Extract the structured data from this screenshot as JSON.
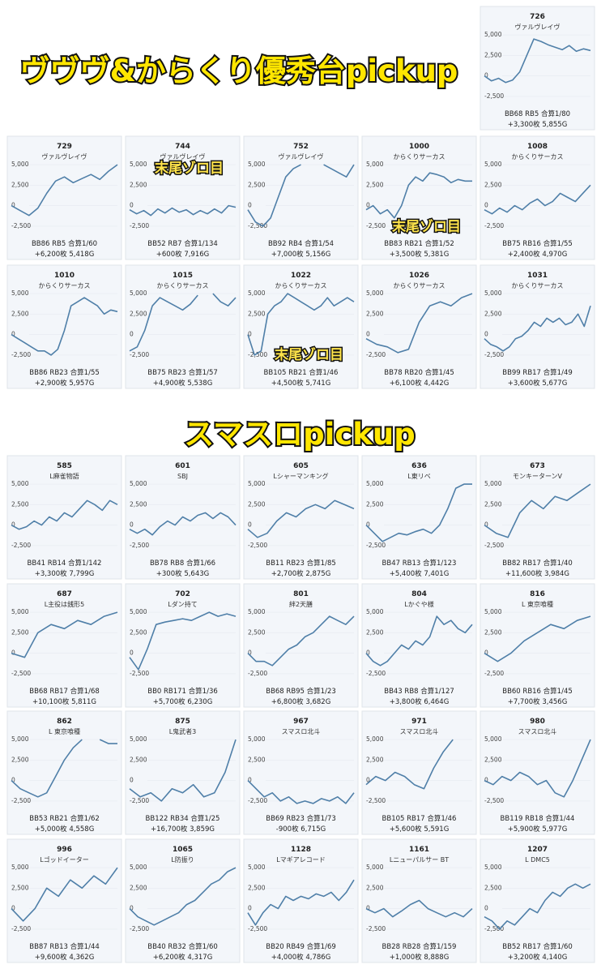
{
  "chart_axis": {
    "type": "line",
    "ylim": [
      -3500,
      5500
    ],
    "yticks": [
      {
        "value": 5000,
        "label": "5,000"
      },
      {
        "value": 2500,
        "label": "2,500"
      },
      0,
      {
        "value": -2500,
        "label": "-2,500"
      }
    ],
    "color": "#4f7fa8"
  },
  "sections": [
    {
      "title": "ヴヴヴ&からくり優秀台pickup",
      "cards": [
        {
          "number": "726",
          "name": "ヴァルヴレイヴ",
          "stats": [
            "BB68 RB5 合算1/80",
            "+3,300枚 5,855G"
          ],
          "values": [
            0,
            -600,
            -300,
            -800,
            -500,
            500,
            2500,
            4500,
            4200,
            3800,
            3500,
            3200,
            3700,
            3000,
            3300,
            3100
          ]
        },
        {
          "number": "729",
          "name": "ヴァルヴレイヴ",
          "stats": [
            "BB86 RB5 合算1/60",
            "+6,200枚 5,418G"
          ],
          "values": [
            0,
            -600,
            -1200,
            -300,
            1500,
            3000,
            3500,
            2800,
            3300,
            3800,
            3200,
            4200,
            5000
          ]
        },
        {
          "number": "744",
          "name": "ヴァルヴレイヴ",
          "annotation": "末尾ゾロ目",
          "stats": [
            "BB52 RB7 合算1/134",
            "+600枚 7,916G"
          ],
          "values": [
            -500,
            -1000,
            -600,
            -1200,
            -400,
            -900,
            -300,
            -800,
            -500,
            -1100,
            -600,
            -1000,
            -400,
            -900,
            0,
            -200
          ]
        },
        {
          "number": "752",
          "name": "ヴァルヴレイヴ",
          "stats": [
            "BB92 RB4 合算1/54",
            "+7,000枚 5,156G"
          ],
          "values": [
            -500,
            -2000,
            -2500,
            -1500,
            1000,
            3500,
            4500,
            5000,
            null,
            null,
            5000,
            4500,
            4000,
            3500,
            5000
          ]
        },
        {
          "number": "1000",
          "name": "からくりサーカス",
          "annotation": "末尾ゾロ目",
          "stats": [
            "BB83 RB21 合算1/52",
            "+3,500枚 5,381G"
          ],
          "values": [
            -500,
            0,
            -1000,
            -500,
            -1500,
            0,
            2500,
            3500,
            3000,
            4000,
            3800,
            3500,
            2800,
            3200,
            3000,
            3000
          ]
        },
        {
          "number": "1008",
          "name": "からくりサーカス",
          "stats": [
            "BB75 RB16 合算1/55",
            "+2,400枚 4,970G"
          ],
          "values": [
            -500,
            -1000,
            -300,
            -800,
            0,
            -500,
            300,
            800,
            0,
            500,
            1500,
            1000,
            500,
            1500,
            2500
          ]
        },
        {
          "number": "1010",
          "name": "からくりサーカス",
          "stats": [
            "BB86 RB23 合算1/55",
            "+2,900枚 5,957G"
          ],
          "values": [
            0,
            -500,
            -1000,
            -1500,
            -2000,
            -2000,
            -2500,
            -1800,
            500,
            3500,
            4000,
            4500,
            4000,
            3500,
            2500,
            3000,
            2800
          ]
        },
        {
          "number": "1015",
          "name": "からくりサーカス",
          "stats": [
            "BB75 RB23 合算1/57",
            "+4,900枚 5,538G"
          ],
          "values": [
            -2000,
            -1500,
            500,
            3500,
            4500,
            4000,
            3500,
            3000,
            3700,
            4800,
            null,
            5000,
            4000,
            3500,
            4500
          ]
        },
        {
          "number": "1022",
          "name": "からくりサーカス",
          "annotation": "末尾ゾロ目",
          "stats": [
            "BB105 RB21 合算1/46",
            "+4,500枚 5,741G"
          ],
          "values": [
            0,
            -2500,
            -2000,
            2500,
            3500,
            4000,
            5000,
            4500,
            4000,
            3500,
            3000,
            3500,
            4500,
            3500,
            4000,
            4500,
            4000
          ]
        },
        {
          "number": "1026",
          "name": "からくりサーカス",
          "stats": [
            "BB78 RB20 合算1/45",
            "+6,100枚 4,442G"
          ],
          "values": [
            -500,
            -1200,
            -1500,
            -2200,
            -1800,
            1500,
            3500,
            4000,
            3500,
            4500,
            5000
          ]
        },
        {
          "number": "1031",
          "name": "からくりサーカス",
          "stats": [
            "BB99 RB17 合算1/49",
            "+3,600枚 5,677G"
          ],
          "values": [
            -500,
            -1200,
            -1500,
            -2000,
            -1500,
            -500,
            -200,
            500,
            1500,
            1000,
            2000,
            1500,
            2000,
            1200,
            1500,
            2500,
            1000,
            3500
          ]
        }
      ]
    },
    {
      "title": "スマスロpickup",
      "cards": [
        {
          "number": "585",
          "name": "L麻雀物語",
          "stats": [
            "BB41 RB14 合算1/142",
            "+3,300枚 7,799G"
          ],
          "values": [
            0,
            -500,
            -200,
            500,
            0,
            1000,
            500,
            1500,
            1000,
            2000,
            3000,
            2500,
            1800,
            3000,
            2500
          ]
        },
        {
          "number": "601",
          "name": "SBJ",
          "stats": [
            "BB78 RB8 合算1/66",
            "+300枚 5,643G"
          ],
          "values": [
            -500,
            -1000,
            -500,
            -1200,
            -200,
            500,
            0,
            1000,
            500,
            1200,
            1500,
            800,
            1500,
            1000,
            0
          ]
        },
        {
          "number": "605",
          "name": "Lシャーマンキング",
          "stats": [
            "BB11 RB23 合算1/85",
            "+2,700枚 2,875G"
          ],
          "values": [
            -500,
            -1500,
            -1000,
            500,
            1500,
            1000,
            2000,
            2500,
            2000,
            3000,
            2500,
            2000
          ]
        },
        {
          "number": "636",
          "name": "L東リベ",
          "stats": [
            "BB47 RB13 合算1/123",
            "+5,400枚 7,401G"
          ],
          "values": [
            0,
            -1000,
            -2000,
            -1500,
            -1000,
            -1200,
            -800,
            -500,
            -1000,
            0,
            2000,
            4500,
            5000,
            5000
          ]
        },
        {
          "number": "673",
          "name": "モンキーターンV",
          "stats": [
            "BB82 RB17 合算1/40",
            "+11,600枚 3,984G"
          ],
          "values": [
            0,
            -1000,
            -1500,
            1500,
            3000,
            2000,
            3500,
            3000,
            4000,
            5000
          ]
        },
        {
          "number": "687",
          "name": "L主役は銭形5",
          "stats": [
            "BB68 RB17 合算1/68",
            "+10,100枚 5,811G"
          ],
          "values": [
            0,
            -500,
            2500,
            3500,
            3000,
            4000,
            3500,
            4500,
            5000
          ]
        },
        {
          "number": "702",
          "name": "Lダン持て",
          "stats": [
            "BB0 RB171 合算1/36",
            "+5,700枚 6,230G"
          ],
          "values": [
            -500,
            -2000,
            500,
            3500,
            3800,
            4000,
            4200,
            4000,
            4500,
            5000,
            4500,
            4800,
            4500
          ]
        },
        {
          "number": "801",
          "name": "絆2天膳",
          "stats": [
            "BB68 RB95 合算1/23",
            "+6,800枚 3,682G"
          ],
          "values": [
            0,
            -1000,
            -1000,
            -1500,
            -500,
            500,
            1000,
            2000,
            2500,
            3500,
            4500,
            4000,
            3500,
            4500
          ]
        },
        {
          "number": "804",
          "name": "Lかぐや様",
          "stats": [
            "BB43 RB8 合算1/127",
            "+3,800枚 6,464G"
          ],
          "values": [
            0,
            -1000,
            -1500,
            -1000,
            0,
            1000,
            500,
            1500,
            1000,
            2000,
            4500,
            3500,
            4000,
            3000,
            2500,
            3500
          ]
        },
        {
          "number": "816",
          "name": "L 東京喰種",
          "stats": [
            "BB60 RB16 合算1/45",
            "+7,700枚 3,456G"
          ],
          "values": [
            0,
            -1000,
            0,
            1500,
            2500,
            3500,
            3000,
            4000,
            4500
          ]
        },
        {
          "number": "862",
          "name": "L 東京喰種",
          "stats": [
            "BB53 RB21 合算1/62",
            "+5,000枚 4,558G"
          ],
          "values": [
            0,
            -1000,
            -1500,
            -2000,
            -1500,
            500,
            2500,
            4000,
            5000,
            null,
            5000,
            4500,
            4500
          ]
        },
        {
          "number": "875",
          "name": "L鬼武者3",
          "stats": [
            "BB122 RB34 合算1/25",
            "+16,700枚 3,859G"
          ],
          "values": [
            -1000,
            -2000,
            -1500,
            -2500,
            -1000,
            -1500,
            -500,
            -2000,
            -1500,
            1000,
            5000
          ]
        },
        {
          "number": "967",
          "name": "スマスロ北斗",
          "stats": [
            "BB69 RB23 合算1/73",
            "-900枚 6,715G"
          ],
          "values": [
            0,
            -1000,
            -2000,
            -1500,
            -2500,
            -2000,
            -2800,
            -2500,
            -2800,
            -2200,
            -2500,
            -2000,
            -2800,
            -1500
          ]
        },
        {
          "number": "971",
          "name": "スマスロ北斗",
          "stats": [
            "BB105 RB17 合算1/46",
            "+5,600枚 5,591G"
          ],
          "values": [
            -500,
            500,
            0,
            1000,
            500,
            -500,
            -1000,
            1500,
            3500,
            5000,
            null,
            5000
          ]
        },
        {
          "number": "980",
          "name": "スマスロ北斗",
          "stats": [
            "BB119 RB18 合算1/44",
            "+5,900枚 5,977G"
          ],
          "values": [
            0,
            -500,
            500,
            0,
            1000,
            500,
            -500,
            0,
            -1500,
            -2000,
            0,
            2500,
            5000
          ]
        },
        {
          "number": "996",
          "name": "Lゴッドイーター",
          "stats": [
            "BB87 RB13 合算1/44",
            "+9,600枚 4,362G"
          ],
          "values": [
            0,
            -1500,
            0,
            2500,
            1500,
            3500,
            2500,
            4000,
            3000,
            5000
          ]
        },
        {
          "number": "1065",
          "name": "L防振り",
          "stats": [
            "BB40 RB32 合算1/60",
            "+6,200枚 4,317G"
          ],
          "values": [
            0,
            -1000,
            -1500,
            -2000,
            -1500,
            -1000,
            -500,
            500,
            1000,
            2000,
            3000,
            3500,
            4500,
            5000
          ]
        },
        {
          "number": "1128",
          "name": "Lマギアレコード",
          "stats": [
            "BB20 RB49 合算1/69",
            "+4,000枚 4,786G"
          ],
          "values": [
            -500,
            -2000,
            -500,
            500,
            0,
            1500,
            1000,
            1500,
            1200,
            1800,
            1500,
            2000,
            1000,
            2000,
            3500
          ]
        },
        {
          "number": "1161",
          "name": "Lニューパルサー BT",
          "stats": [
            "BB28 RB28 合算1/159",
            "+1,000枚 8,888G"
          ],
          "values": [
            0,
            -500,
            0,
            -1000,
            -300,
            500,
            1000,
            0,
            -500,
            -1000,
            -500,
            -1000,
            0
          ]
        },
        {
          "number": "1207",
          "name": "L DMC5",
          "stats": [
            "BB52 RB17 合算1/60",
            "+3,200枚 4,140G"
          ],
          "values": [
            -1000,
            -1500,
            -2500,
            -1500,
            -2000,
            -1000,
            0,
            -500,
            1000,
            2000,
            1500,
            2500,
            3000,
            2500,
            3000
          ]
        }
      ]
    }
  ]
}
